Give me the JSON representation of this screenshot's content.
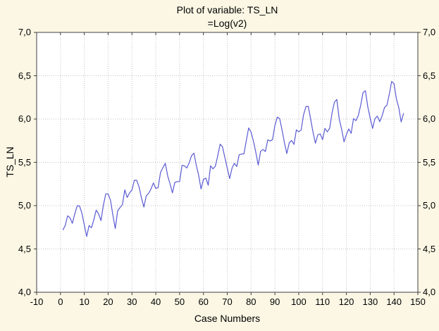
{
  "figure": {
    "title_line1": "Plot of variable: TS_LN",
    "title_line2": "=Log(v2)",
    "x_axis_label": "Case Numbers",
    "y_axis_label": "TS_LN"
  },
  "colors": {
    "background": "#FBF7E4",
    "plot_background": "#FFFFFF",
    "line": "#5B5BD3",
    "grid": "#C2C2C2",
    "axis": "#3F3F3F",
    "text": "#000000"
  },
  "chart_data": {
    "type": "line",
    "title": "Plot of variable: TS_LN",
    "subtitle": "=Log(v2)",
    "xlabel": "Case Numbers",
    "ylabel": "TS_LN",
    "xlim": [
      -10,
      150
    ],
    "ylim": [
      4.0,
      7.0
    ],
    "x_tick_step": 10,
    "y_tick_step": 0.5,
    "x_tick_labels": [
      "-10",
      "0",
      "10",
      "20",
      "30",
      "40",
      "50",
      "60",
      "70",
      "80",
      "90",
      "100",
      "110",
      "120",
      "130",
      "140",
      "150"
    ],
    "y_tick_labels": [
      "4,0",
      "4,5",
      "5,0",
      "5,5",
      "6,0",
      "6,5",
      "7,0"
    ],
    "grid": true,
    "legend": "none",
    "series": [
      {
        "name": "TS_LN",
        "x_start": 1,
        "values": [
          4.718,
          4.771,
          4.883,
          4.86,
          4.796,
          4.905,
          4.997,
          4.997,
          4.913,
          4.779,
          4.644,
          4.771,
          4.745,
          4.836,
          4.949,
          4.905,
          4.828,
          5.004,
          5.136,
          5.136,
          5.063,
          4.89,
          4.736,
          4.942,
          4.977,
          5.011,
          5.182,
          5.094,
          5.147,
          5.182,
          5.293,
          5.293,
          5.215,
          5.088,
          4.984,
          5.112,
          5.142,
          5.193,
          5.263,
          5.198,
          5.209,
          5.384,
          5.438,
          5.489,
          5.342,
          5.252,
          5.147,
          5.268,
          5.278,
          5.278,
          5.464,
          5.46,
          5.434,
          5.493,
          5.576,
          5.606,
          5.468,
          5.352,
          5.193,
          5.303,
          5.318,
          5.236,
          5.46,
          5.425,
          5.455,
          5.576,
          5.71,
          5.68,
          5.557,
          5.434,
          5.313,
          5.434,
          5.489,
          5.451,
          5.587,
          5.595,
          5.598,
          5.753,
          5.897,
          5.849,
          5.743,
          5.613,
          5.468,
          5.628,
          5.649,
          5.624,
          5.759,
          5.746,
          5.762,
          5.924,
          6.023,
          6.004,
          5.872,
          5.724,
          5.602,
          5.724,
          5.753,
          5.707,
          5.875,
          5.852,
          5.872,
          6.045,
          6.142,
          6.146,
          6.001,
          5.849,
          5.72,
          5.817,
          5.829,
          5.762,
          5.892,
          5.852,
          5.894,
          6.075,
          6.196,
          6.225,
          6.001,
          5.883,
          5.737,
          5.82,
          5.886,
          5.835,
          6.006,
          5.981,
          6.04,
          6.157,
          6.306,
          6.326,
          6.138,
          6.009,
          5.892,
          6.004,
          6.033,
          5.969,
          6.038,
          6.133,
          6.157,
          6.282,
          6.433,
          6.407,
          6.23,
          6.133,
          5.966,
          6.068
        ]
      }
    ]
  }
}
